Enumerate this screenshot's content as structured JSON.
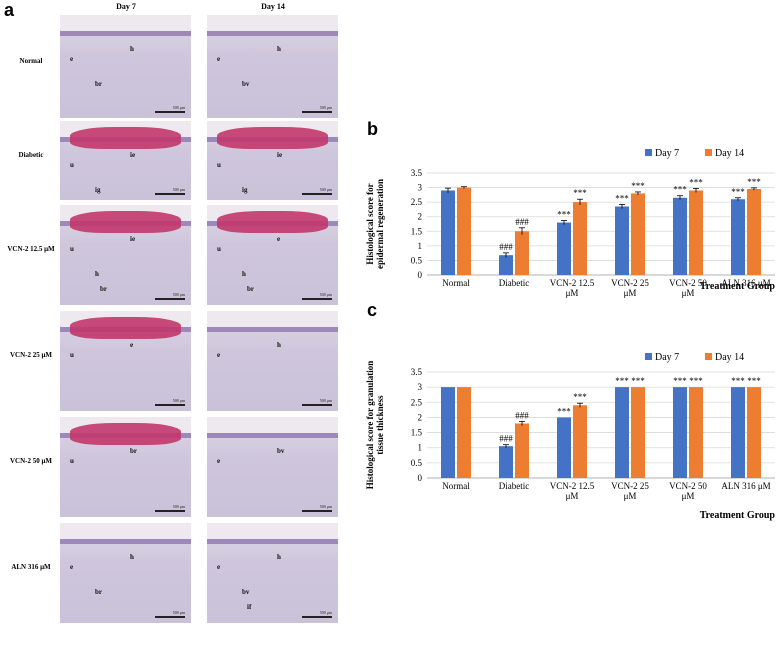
{
  "panel_a": {
    "letter": "a",
    "col_headers": [
      "Day 7",
      "Day 14"
    ],
    "rows": [
      {
        "label": "Normal",
        "tiles": [
          [
            "e",
            "h",
            "br"
          ],
          [
            "e",
            "h",
            "bv"
          ]
        ],
        "scab": [
          false,
          false
        ]
      },
      {
        "label": "Diabetic",
        "tiles": [
          [
            "u",
            "ie",
            "ig"
          ],
          [
            "u",
            "ie",
            "ig"
          ]
        ],
        "scab": [
          true,
          true
        ]
      },
      {
        "label": "VCN-2 12.5 μM",
        "tiles": [
          [
            "u",
            "ie",
            "h",
            "br"
          ],
          [
            "u",
            "e",
            "h",
            "br"
          ]
        ],
        "scab": [
          true,
          true
        ]
      },
      {
        "label": "VCN-2 25 μM",
        "tiles": [
          [
            "u",
            "e"
          ],
          [
            "e",
            "h"
          ]
        ],
        "scab": [
          true,
          false
        ]
      },
      {
        "label": "VCN-2 50 μM",
        "tiles": [
          [
            "u",
            "br"
          ],
          [
            "e",
            "bv"
          ]
        ],
        "scab": [
          true,
          false
        ]
      },
      {
        "label": "ALN 316 μM",
        "tiles": [
          [
            "e",
            "h",
            "br"
          ],
          [
            "e",
            "h",
            "bv",
            "if"
          ]
        ],
        "scab": [
          false,
          false
        ]
      }
    ],
    "scale_text": "500 μm"
  },
  "chart_data": [
    {
      "panel": "b",
      "type": "bar",
      "ylabel": "Histological score for epidermal regeneration",
      "xlabel": "Treatment Group",
      "ylim": [
        0,
        3.5
      ],
      "yticks": [
        "0",
        "0.5",
        "1",
        "1.5",
        "2",
        "2.5",
        "3",
        "3.5"
      ],
      "categories": [
        "Normal",
        "Diabetic",
        "VCN-2 12.5 μM",
        "VCN-2  25 μM",
        "VCN-2  50 μM",
        "ALN 316 μM"
      ],
      "series": [
        {
          "name": "Day 7",
          "color": "#4472C4",
          "values": [
            2.9,
            0.68,
            1.8,
            2.35,
            2.65,
            2.6
          ],
          "errors": [
            0.08,
            0.08,
            0.07,
            0.07,
            0.07,
            0.05
          ],
          "marks": [
            "",
            "###",
            "***",
            "***",
            "***",
            "***"
          ]
        },
        {
          "name": "Day 14",
          "color": "#ED7D31",
          "values": [
            3.0,
            1.5,
            2.5,
            2.8,
            2.9,
            2.95
          ],
          "errors": [
            0.03,
            0.12,
            0.1,
            0.05,
            0.07,
            0.04
          ],
          "marks": [
            "",
            "###",
            "***",
            "***",
            "***",
            "***"
          ]
        }
      ],
      "legend": "top-right",
      "grid": true
    },
    {
      "panel": "c",
      "type": "bar",
      "ylabel": "Histological score for granulation tissue thickness",
      "xlabel": "Treatment Group",
      "ylim": [
        0,
        3.5
      ],
      "yticks": [
        "0",
        "0.5",
        "1",
        "1.5",
        "2",
        "2.5",
        "3",
        "3.5"
      ],
      "categories": [
        "Normal",
        "Diabetic",
        "VCN-2 12.5 μM",
        "VCN-2  25 μM",
        "VCN-2 50 μM",
        "ALN 316 μM"
      ],
      "series": [
        {
          "name": "Day 7",
          "color": "#4472C4",
          "values": [
            3.0,
            1.05,
            2.0,
            3.0,
            3.0,
            3.0
          ],
          "errors": [
            0.0,
            0.05,
            0.0,
            0.0,
            0.0,
            0.0
          ],
          "marks": [
            "",
            "###",
            "***",
            "***",
            "***",
            "***"
          ]
        },
        {
          "name": "Day 14",
          "color": "#ED7D31",
          "values": [
            3.0,
            1.8,
            2.4,
            3.0,
            3.0,
            3.0
          ],
          "errors": [
            0.0,
            0.07,
            0.07,
            0.0,
            0.0,
            0.0
          ],
          "marks": [
            "",
            "###",
            "***",
            "***",
            "***",
            "***"
          ]
        }
      ],
      "legend": "top-right",
      "grid": true
    }
  ]
}
